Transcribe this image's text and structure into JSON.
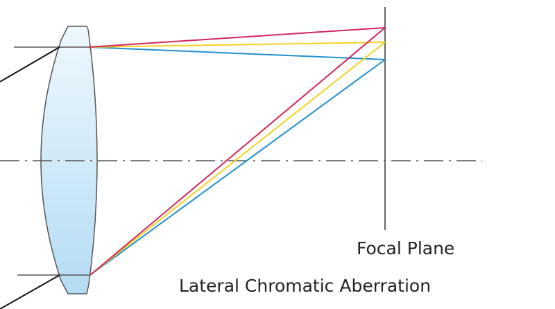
{
  "labels": {
    "focal_plane": "Focal Plane",
    "caption": "Lateral Chromatic Aberration"
  },
  "colors": {
    "red": "#d0245a",
    "yellow": "#f5d020",
    "blue": "#1f8fcf",
    "lens_fill": "#c6e6f8",
    "outline": "#555555",
    "incoming_ray": "#111111"
  }
}
